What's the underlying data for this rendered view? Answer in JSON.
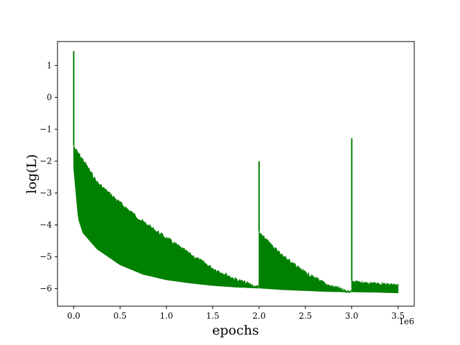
{
  "chart_data": {
    "type": "line",
    "title": "",
    "xlabel": "epochs",
    "ylabel": "log(L)",
    "x_offset_label": "1e6",
    "xlim": [
      -0.175,
      3.675
    ],
    "ylim": [
      -6.55,
      1.75
    ],
    "x_ticks": [
      0.0,
      0.5,
      1.0,
      1.5,
      2.0,
      2.5,
      3.0,
      3.5
    ],
    "x_tick_labels": [
      "0.0",
      "0.5",
      "1.0",
      "1.5",
      "2.0",
      "2.5",
      "3.0",
      "3.5"
    ],
    "y_ticks": [
      1,
      0,
      -1,
      -2,
      -3,
      -4,
      -5,
      -6
    ],
    "y_tick_labels": [
      "1",
      "0",
      "−1",
      "−2",
      "−3",
      "−4",
      "−5",
      "−6"
    ],
    "grid": false,
    "series_color": "#008000",
    "envelope_upper": [
      [
        0.0,
        -1.5
      ],
      [
        0.1,
        -1.9
      ],
      [
        0.25,
        -2.6
      ],
      [
        0.5,
        -3.25
      ],
      [
        0.75,
        -3.85
      ],
      [
        1.0,
        -4.35
      ],
      [
        1.25,
        -4.85
      ],
      [
        1.5,
        -5.3
      ],
      [
        1.75,
        -5.65
      ],
      [
        1.99,
        -5.9
      ],
      [
        2.0,
        -4.2
      ],
      [
        2.25,
        -4.9
      ],
      [
        2.5,
        -5.45
      ],
      [
        2.75,
        -5.85
      ],
      [
        2.99,
        -6.05
      ],
      [
        3.0,
        -5.75
      ],
      [
        3.25,
        -5.8
      ],
      [
        3.5,
        -5.85
      ]
    ],
    "envelope_lower": [
      [
        0.0,
        -2.2
      ],
      [
        0.05,
        -3.8
      ],
      [
        0.1,
        -4.25
      ],
      [
        0.25,
        -4.75
      ],
      [
        0.5,
        -5.25
      ],
      [
        0.75,
        -5.55
      ],
      [
        1.0,
        -5.72
      ],
      [
        1.25,
        -5.82
      ],
      [
        1.5,
        -5.9
      ],
      [
        1.75,
        -5.95
      ],
      [
        1.99,
        -5.98
      ],
      [
        2.0,
        -5.98
      ],
      [
        2.25,
        -6.03
      ],
      [
        2.5,
        -6.06
      ],
      [
        2.75,
        -6.09
      ],
      [
        2.99,
        -6.1
      ],
      [
        3.0,
        -6.1
      ],
      [
        3.25,
        -6.11
      ],
      [
        3.5,
        -6.13
      ]
    ],
    "spikes": [
      {
        "x": 0.0,
        "y": 1.45
      },
      {
        "x": 2.0,
        "y": -2.0
      },
      {
        "x": 3.0,
        "y": -1.28
      }
    ]
  }
}
